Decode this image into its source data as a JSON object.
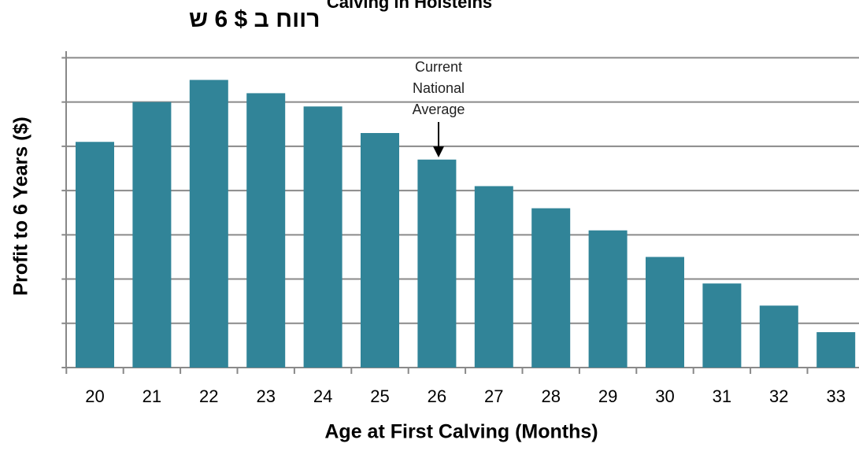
{
  "chart_data": {
    "type": "bar",
    "title": "Calving in Holsteins",
    "subtitle": "רווח ב $ 6 ש",
    "x_label": "Age at First Calving (Months)",
    "y_label": "Profit to 6 Years ($)",
    "annotation": [
      "Current",
      "National",
      "Average"
    ],
    "categories": [
      "20",
      "21",
      "22",
      "23",
      "24",
      "25",
      "26",
      "27",
      "28",
      "29",
      "30",
      "31",
      "32",
      "33"
    ],
    "values": [
      5.1,
      6.0,
      6.5,
      6.2,
      5.9,
      5.3,
      4.7,
      4.1,
      3.6,
      3.1,
      2.5,
      1.9,
      1.4,
      0.8
    ],
    "color": "#318498",
    "ylim": [
      0,
      7.15
    ],
    "yticks": [
      0,
      1,
      2,
      3,
      4,
      5,
      6,
      7
    ],
    "grid": true
  }
}
